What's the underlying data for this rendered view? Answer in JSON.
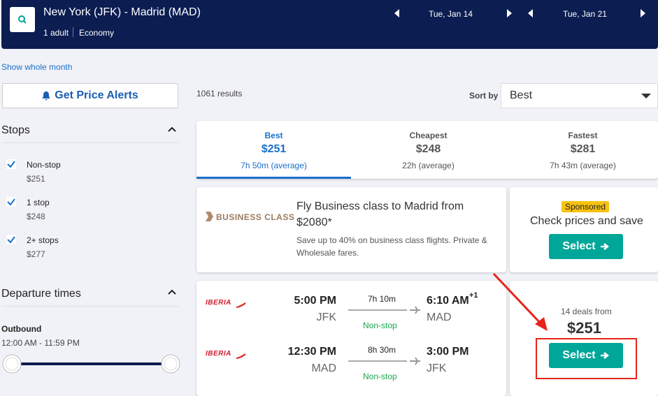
{
  "header": {
    "route": "New York (JFK) - Madrid (MAD)",
    "travelers": "1 adult",
    "cabin": "Economy",
    "depart_date": "Tue, Jan 14",
    "return_date": "Tue, Jan 21"
  },
  "show_whole_month": "Show whole month",
  "price_alerts": "Get Price Alerts",
  "results_count": "1061 results",
  "sort": {
    "label": "Sort by",
    "value": "Best"
  },
  "filters": {
    "stops": {
      "title": "Stops",
      "options": [
        {
          "label": "Non-stop",
          "price": "$251"
        },
        {
          "label": "1 stop",
          "price": "$248"
        },
        {
          "label": "2+ stops",
          "price": "$277"
        }
      ]
    },
    "departure": {
      "title": "Departure times",
      "outbound": "Outbound",
      "range": "12:00 AM - 11:59 PM"
    }
  },
  "tabs": [
    {
      "name": "Best",
      "price": "$251",
      "duration": "7h 50m (average)"
    },
    {
      "name": "Cheapest",
      "price": "$248",
      "duration": "22h (average)"
    },
    {
      "name": "Fastest",
      "price": "$281",
      "duration": "7h 43m (average)"
    }
  ],
  "ad": {
    "brand": "BUSINESS CLASS",
    "headline": "Fly Business class to Madrid from $2080*",
    "text": "Save up to 40% on business class flights. Private & Wholesale fares.",
    "badge": "Sponsored",
    "cta_text": "Check prices and save",
    "button": "Select"
  },
  "result": {
    "legs": [
      {
        "airline": "IBERIA",
        "depart_time": "5:00 PM",
        "depart_airport": "JFK",
        "duration": "7h 10m",
        "stops": "Non-stop",
        "arrive_time": "6:10 AM",
        "day_offset": "+1",
        "arrive_airport": "MAD"
      },
      {
        "airline": "IBERIA",
        "depart_time": "12:30 PM",
        "depart_airport": "MAD",
        "duration": "8h 30m",
        "stops": "Non-stop",
        "arrive_time": "3:00 PM",
        "arrive_airport": "JFK"
      }
    ],
    "deals": "14 deals from",
    "price": "$251",
    "button": "Select"
  }
}
